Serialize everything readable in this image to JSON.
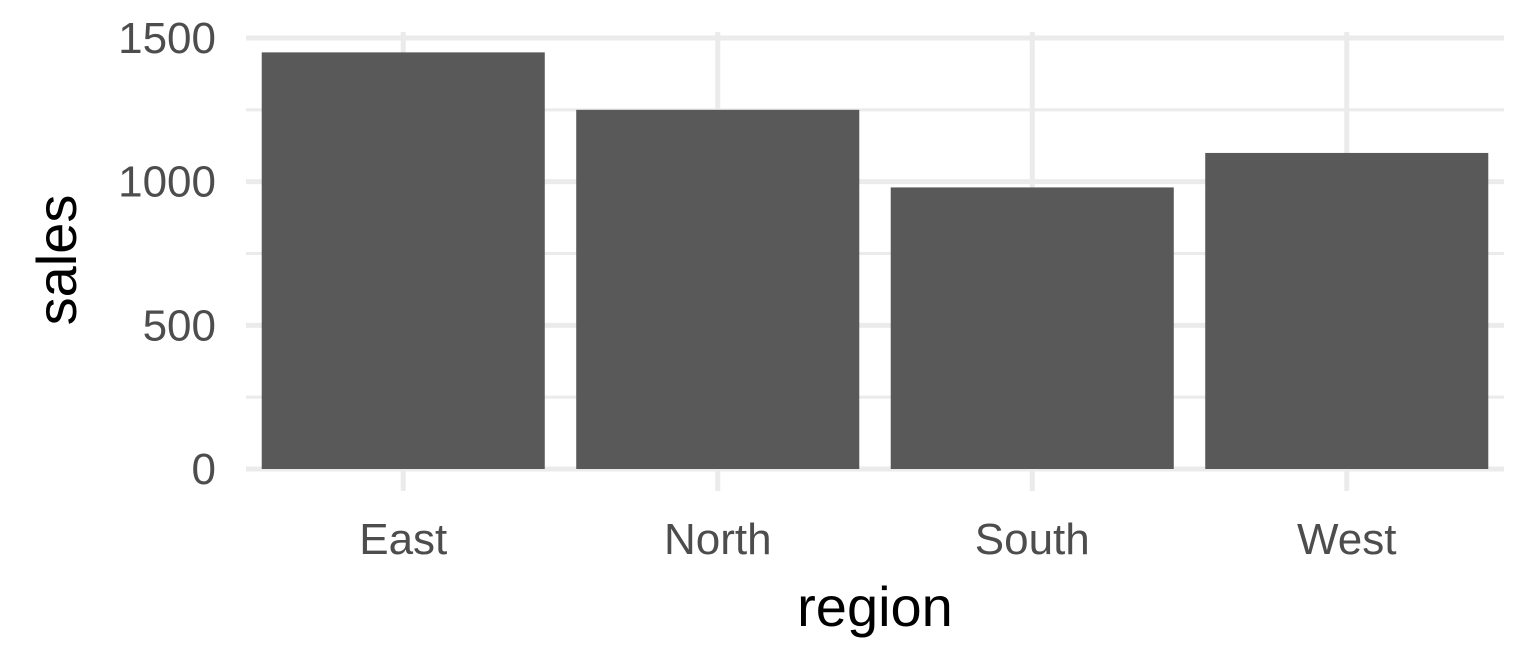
{
  "chart_data": {
    "type": "bar",
    "categories": [
      "East",
      "North",
      "South",
      "West"
    ],
    "values": [
      1450,
      1250,
      980,
      1100
    ],
    "title": "",
    "xlabel": "region",
    "ylabel": "sales",
    "ylim": [
      0,
      1500
    ],
    "yticks": [
      "0",
      "500",
      "1000",
      "1500"
    ],
    "grid": true,
    "legend": "none",
    "colors": {
      "bar": "#595959",
      "grid": "#ebebeb",
      "tick_text": "#4d4d4d",
      "axis_title": "#000000",
      "background": "#ffffff"
    }
  }
}
